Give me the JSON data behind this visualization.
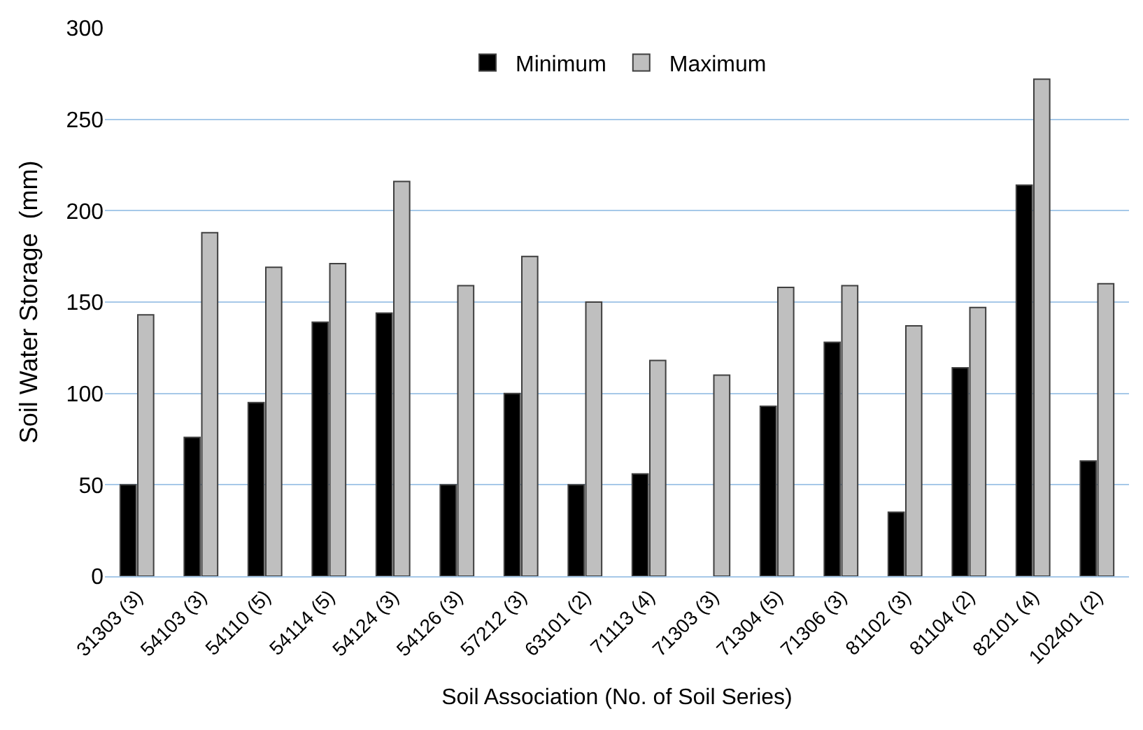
{
  "chart_data": {
    "type": "bar",
    "xlabel": "Soil Association (No. of Soil Series)",
    "ylabel": "Soil Water Storage  (mm)",
    "categories": [
      "31303 (3)",
      "54103 (3)",
      "54110 (5)",
      "54114 (5)",
      "54124 (3)",
      "54126 (3)",
      "57212 (3)",
      "63101 (2)",
      "71113 (4)",
      "71303 (3)",
      "71304 (5)",
      "71306 (3)",
      "81102 (3)",
      "81104 (2)",
      "82101 (4)",
      "102401 (2)"
    ],
    "series": [
      {
        "name": "Minimum",
        "color": "#000000",
        "values": [
          50,
          76,
          95,
          139,
          144,
          50,
          100,
          50,
          56,
          null,
          93,
          128,
          35,
          114,
          214,
          63
        ]
      },
      {
        "name": "Maximum",
        "color": "#bfbfbf",
        "values": [
          143,
          188,
          169,
          171,
          216,
          159,
          175,
          150,
          118,
          110,
          158,
          159,
          137,
          147,
          272,
          160
        ]
      }
    ],
    "ylim": [
      0,
      300
    ],
    "yticks": [
      0,
      50,
      100,
      150,
      200,
      250,
      300
    ],
    "grid": "y",
    "legend": "top"
  }
}
